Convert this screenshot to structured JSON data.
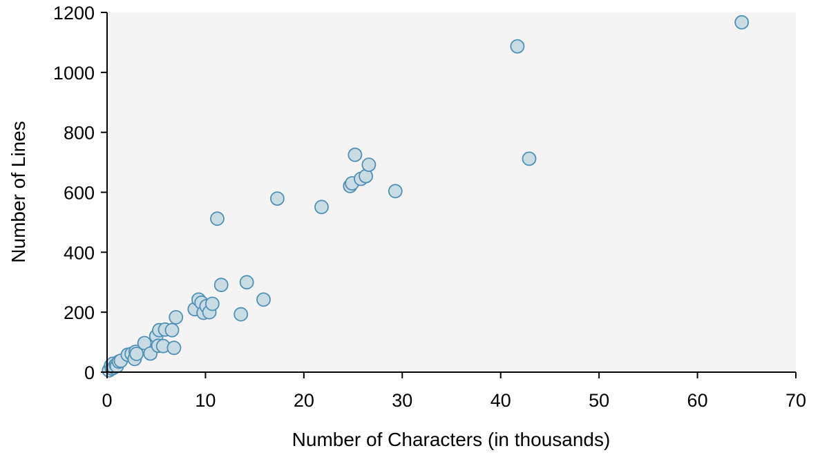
{
  "chart_data": {
    "type": "scatter",
    "xlabel": "Number of Characters (in thousands)",
    "ylabel": "Number of Lines",
    "xlim": [
      0,
      70
    ],
    "ylim": [
      0,
      1200
    ],
    "xticks": [
      0,
      10,
      20,
      30,
      40,
      50,
      60,
      70
    ],
    "yticks": [
      0,
      200,
      400,
      600,
      800,
      1000,
      1200
    ],
    "grid": false,
    "background_color": "#f4f4f4",
    "point_fill": "#c9dbe3",
    "point_stroke": "#4f91b5",
    "points": [
      {
        "x": 0.2,
        "y": 6
      },
      {
        "x": 0.4,
        "y": 22
      },
      {
        "x": 0.5,
        "y": 12
      },
      {
        "x": 0.6,
        "y": 28
      },
      {
        "x": 0.7,
        "y": 16
      },
      {
        "x": 0.9,
        "y": 24
      },
      {
        "x": 1.0,
        "y": 20
      },
      {
        "x": 1.2,
        "y": 35
      },
      {
        "x": 1.4,
        "y": 38
      },
      {
        "x": 2.1,
        "y": 58
      },
      {
        "x": 2.5,
        "y": 61
      },
      {
        "x": 2.8,
        "y": 44
      },
      {
        "x": 2.9,
        "y": 68
      },
      {
        "x": 3.0,
        "y": 61
      },
      {
        "x": 3.8,
        "y": 97
      },
      {
        "x": 4.4,
        "y": 62
      },
      {
        "x": 5.0,
        "y": 120
      },
      {
        "x": 5.2,
        "y": 88
      },
      {
        "x": 5.3,
        "y": 140
      },
      {
        "x": 5.7,
        "y": 87
      },
      {
        "x": 5.9,
        "y": 142
      },
      {
        "x": 6.6,
        "y": 140
      },
      {
        "x": 6.8,
        "y": 81
      },
      {
        "x": 7.0,
        "y": 183
      },
      {
        "x": 8.9,
        "y": 210
      },
      {
        "x": 9.3,
        "y": 242
      },
      {
        "x": 9.6,
        "y": 232
      },
      {
        "x": 9.8,
        "y": 198
      },
      {
        "x": 10.1,
        "y": 220
      },
      {
        "x": 10.4,
        "y": 200
      },
      {
        "x": 10.7,
        "y": 228
      },
      {
        "x": 11.2,
        "y": 512
      },
      {
        "x": 11.6,
        "y": 291
      },
      {
        "x": 13.6,
        "y": 193
      },
      {
        "x": 14.2,
        "y": 300
      },
      {
        "x": 15.9,
        "y": 242
      },
      {
        "x": 17.3,
        "y": 579
      },
      {
        "x": 21.8,
        "y": 551
      },
      {
        "x": 24.7,
        "y": 621
      },
      {
        "x": 24.9,
        "y": 630
      },
      {
        "x": 25.2,
        "y": 725
      },
      {
        "x": 25.8,
        "y": 645
      },
      {
        "x": 26.3,
        "y": 654
      },
      {
        "x": 26.6,
        "y": 692
      },
      {
        "x": 29.3,
        "y": 604
      },
      {
        "x": 41.7,
        "y": 1087
      },
      {
        "x": 42.9,
        "y": 712
      },
      {
        "x": 64.5,
        "y": 1167
      }
    ]
  }
}
